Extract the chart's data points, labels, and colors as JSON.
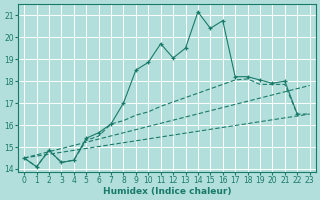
{
  "xlabel": "Humidex (Indice chaleur)",
  "background_color": "#b2dfdb",
  "grid_color": "#ffffff",
  "line_color": "#1a7a6a",
  "xlim": [
    -0.5,
    23.5
  ],
  "ylim": [
    13.85,
    21.5
  ],
  "yticks": [
    14,
    15,
    16,
    17,
    18,
    19,
    20,
    21
  ],
  "xticks": [
    0,
    1,
    2,
    3,
    4,
    5,
    6,
    7,
    8,
    9,
    10,
    11,
    12,
    13,
    14,
    15,
    16,
    17,
    18,
    19,
    20,
    21,
    22,
    23
  ],
  "main_x": [
    0,
    1,
    2,
    3,
    4,
    5,
    6,
    7,
    8,
    9,
    10,
    11,
    12,
    13,
    14,
    15,
    16,
    17,
    18,
    19,
    20,
    21,
    22
  ],
  "main_y": [
    14.5,
    14.1,
    14.85,
    14.3,
    14.4,
    15.4,
    15.65,
    16.05,
    17.0,
    18.5,
    18.85,
    19.7,
    19.05,
    19.5,
    21.15,
    20.4,
    20.75,
    18.2,
    18.2,
    18.05,
    17.9,
    18.0,
    16.5
  ],
  "line2_x": [
    0,
    1,
    2,
    3,
    4,
    5,
    6,
    7,
    8,
    9,
    10,
    11,
    12,
    13,
    14,
    15,
    16,
    17,
    18,
    19,
    20,
    21,
    22,
    23
  ],
  "line2_y": [
    14.5,
    14.1,
    14.85,
    14.3,
    14.4,
    15.3,
    15.5,
    16.05,
    16.2,
    16.45,
    16.6,
    16.85,
    17.05,
    17.25,
    17.45,
    17.65,
    17.85,
    18.05,
    18.1,
    17.85,
    17.85,
    17.85,
    16.5,
    16.5
  ],
  "line3_x": [
    0,
    23
  ],
  "line3_y": [
    14.5,
    17.8
  ],
  "line4_x": [
    0,
    23
  ],
  "line4_y": [
    14.5,
    16.5
  ]
}
